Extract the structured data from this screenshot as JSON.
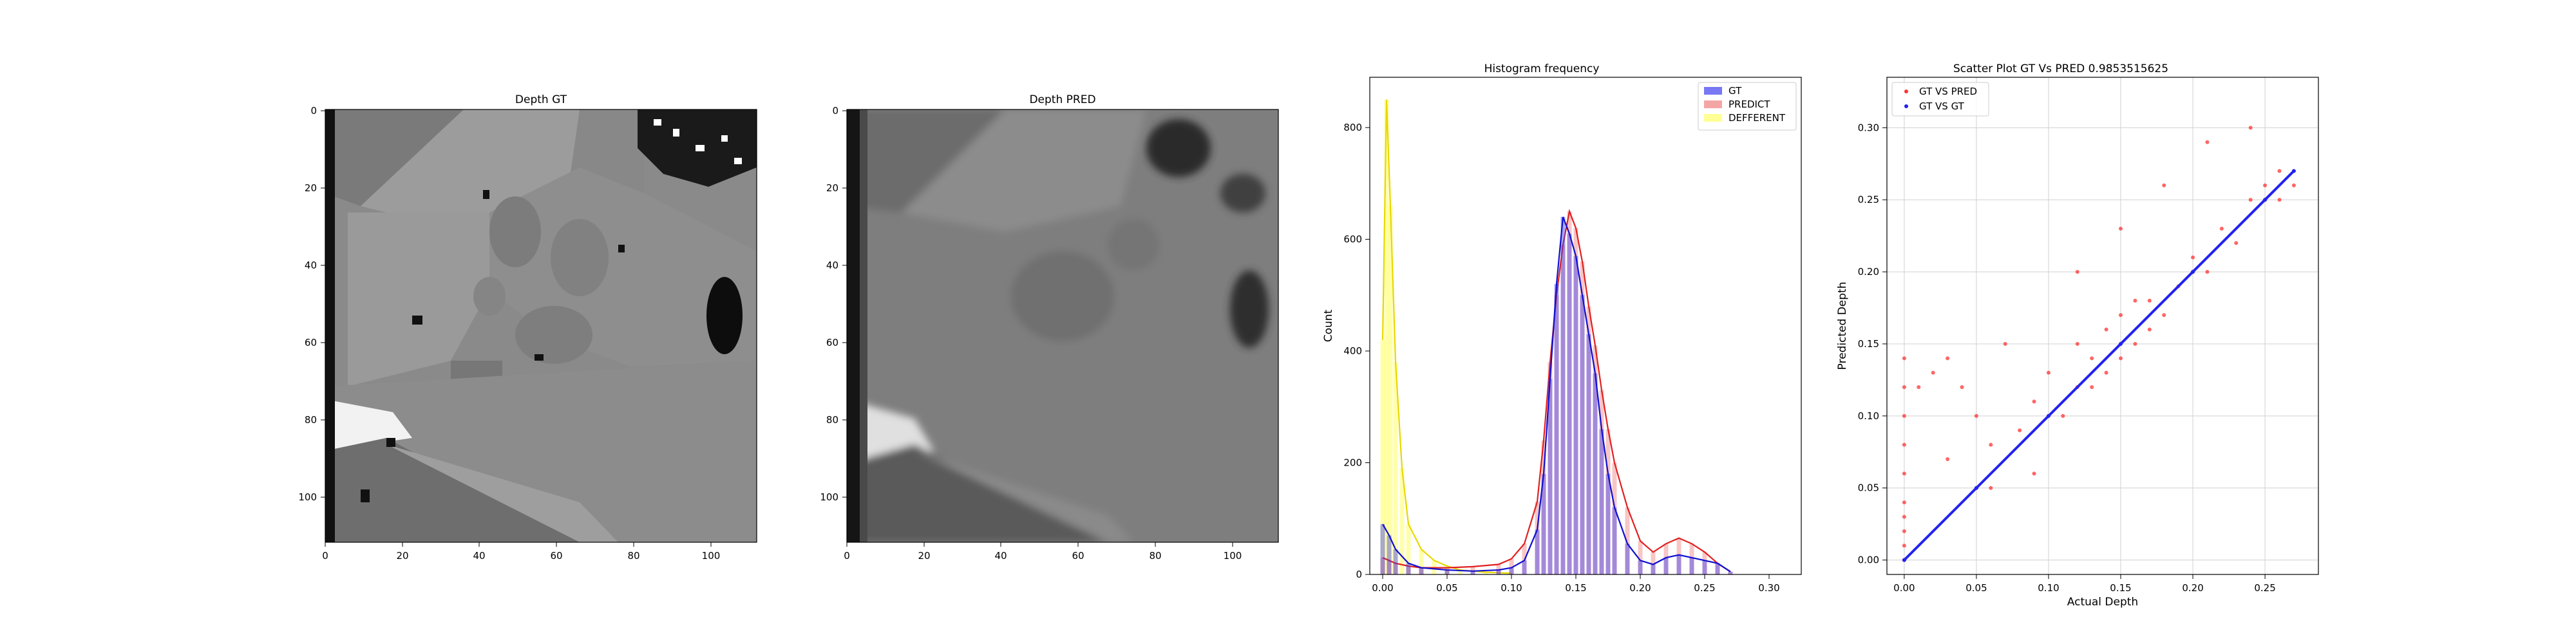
{
  "chart_data": [
    {
      "type": "heatmap",
      "title": "Depth GT",
      "xticks": [
        "0",
        "20",
        "40",
        "60",
        "80",
        "100"
      ],
      "yticks": [
        "0",
        "20",
        "40",
        "60",
        "80",
        "100"
      ],
      "xlim": [
        0,
        112
      ],
      "ylim": [
        0,
        112
      ],
      "colormap": "gray"
    },
    {
      "type": "heatmap",
      "title": "Depth PRED",
      "xticks": [
        "0",
        "20",
        "40",
        "60",
        "80",
        "100"
      ],
      "yticks": [
        "0",
        "20",
        "40",
        "60",
        "80",
        "100"
      ],
      "xlim": [
        0,
        112
      ],
      "ylim": [
        0,
        112
      ],
      "colormap": "gray"
    },
    {
      "type": "bar",
      "title": "Histogram frequency",
      "xlabel": "",
      "ylabel": "Count",
      "xlim": [
        -0.01,
        0.325
      ],
      "ylim": [
        0,
        890
      ],
      "xticks": [
        "0.00",
        "0.05",
        "0.10",
        "0.15",
        "0.20",
        "0.25",
        "0.30"
      ],
      "yticks": [
        "0",
        "200",
        "400",
        "600",
        "800"
      ],
      "legend": "top-right",
      "series": [
        {
          "name": "GT",
          "color": "#3f3fef",
          "x": [
            0.0,
            0.005,
            0.01,
            0.02,
            0.03,
            0.05,
            0.07,
            0.09,
            0.1,
            0.11,
            0.12,
            0.125,
            0.13,
            0.135,
            0.14,
            0.145,
            0.15,
            0.155,
            0.16,
            0.165,
            0.17,
            0.175,
            0.18,
            0.19,
            0.2,
            0.21,
            0.22,
            0.23,
            0.24,
            0.25,
            0.26,
            0.27
          ],
          "values": [
            90,
            70,
            45,
            20,
            12,
            8,
            6,
            8,
            12,
            25,
            80,
            180,
            350,
            520,
            640,
            610,
            570,
            500,
            430,
            360,
            260,
            180,
            120,
            55,
            25,
            18,
            30,
            35,
            30,
            25,
            20,
            5
          ]
        },
        {
          "name": "PREDICT",
          "color": "#f08080",
          "x": [
            0.0,
            0.005,
            0.01,
            0.02,
            0.03,
            0.05,
            0.07,
            0.09,
            0.1,
            0.11,
            0.12,
            0.125,
            0.13,
            0.135,
            0.14,
            0.145,
            0.15,
            0.155,
            0.16,
            0.165,
            0.17,
            0.175,
            0.18,
            0.19,
            0.2,
            0.21,
            0.22,
            0.23,
            0.24,
            0.25,
            0.26,
            0.27
          ],
          "values": [
            30,
            25,
            20,
            15,
            12,
            12,
            14,
            18,
            28,
            55,
            130,
            240,
            380,
            500,
            590,
            650,
            620,
            560,
            480,
            410,
            330,
            260,
            200,
            120,
            60,
            40,
            55,
            65,
            55,
            40,
            20,
            5
          ]
        },
        {
          "name": "DEFFERENT",
          "color": "#ffff66",
          "x": [
            0.0,
            0.003,
            0.006,
            0.01,
            0.015,
            0.02,
            0.03,
            0.04,
            0.05,
            0.06,
            0.08,
            0.1
          ],
          "values": [
            420,
            850,
            660,
            380,
            190,
            90,
            45,
            25,
            15,
            8,
            4,
            2
          ]
        }
      ]
    },
    {
      "type": "scatter",
      "title": "Scatter Plot GT Vs PRED 0.9853515625",
      "xlabel": "Actual Depth",
      "ylabel": "Predicted Depth",
      "xlim": [
        -0.012,
        0.287
      ],
      "ylim": [
        -0.01,
        0.335
      ],
      "xticks": [
        "0.00",
        "0.05",
        "0.10",
        "0.15",
        "0.20",
        "0.25"
      ],
      "yticks": [
        "0.00",
        "0.05",
        "0.10",
        "0.15",
        "0.20",
        "0.25",
        "0.30"
      ],
      "legend": "top-left",
      "series": [
        {
          "name": "GT VS PRED",
          "color": "#ff3333",
          "x": [
            0.0,
            0.0,
            0.0,
            0.0,
            0.0,
            0.0,
            0.0,
            0.0,
            0.0,
            0.0,
            0.01,
            0.02,
            0.03,
            0.04,
            0.05,
            0.06,
            0.07,
            0.08,
            0.09,
            0.1,
            0.11,
            0.12,
            0.12,
            0.13,
            0.13,
            0.14,
            0.14,
            0.15,
            0.15,
            0.16,
            0.16,
            0.17,
            0.17,
            0.18,
            0.19,
            0.2,
            0.21,
            0.22,
            0.23,
            0.24,
            0.25,
            0.26,
            0.27,
            0.03,
            0.06,
            0.09,
            0.12,
            0.15,
            0.18,
            0.21,
            0.24,
            0.26
          ],
          "y": [
            0.0,
            0.02,
            0.04,
            0.06,
            0.08,
            0.1,
            0.12,
            0.14,
            0.01,
            0.03,
            0.12,
            0.13,
            0.14,
            0.12,
            0.1,
            0.08,
            0.15,
            0.09,
            0.11,
            0.13,
            0.1,
            0.12,
            0.15,
            0.14,
            0.12,
            0.16,
            0.13,
            0.17,
            0.14,
            0.18,
            0.15,
            0.18,
            0.16,
            0.17,
            0.19,
            0.21,
            0.2,
            0.23,
            0.22,
            0.25,
            0.26,
            0.27,
            0.26,
            0.07,
            0.05,
            0.06,
            0.2,
            0.23,
            0.26,
            0.29,
            0.3,
            0.25
          ]
        },
        {
          "name": "GT VS GT",
          "color": "#2222ee",
          "x": [
            0.0,
            0.05,
            0.1,
            0.15,
            0.2,
            0.25,
            0.27
          ],
          "y": [
            0.0,
            0.05,
            0.1,
            0.15,
            0.2,
            0.25,
            0.27
          ]
        }
      ]
    }
  ]
}
